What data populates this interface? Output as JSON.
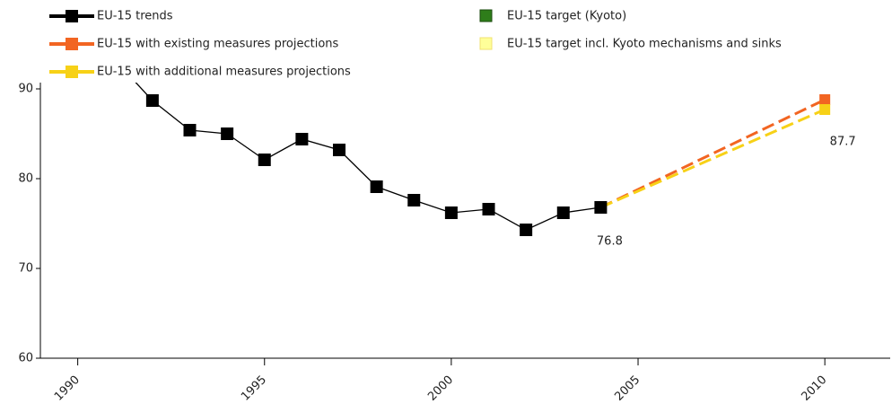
{
  "chart_data": {
    "type": "line",
    "xlim": [
      1989,
      2011.75
    ],
    "xticks": [
      1990,
      1995,
      2000,
      2005,
      2010
    ],
    "ylim": [
      60,
      90.7
    ],
    "yticks": [
      60,
      70,
      80,
      90
    ],
    "grid": false,
    "series": [
      {
        "name": "EU-15  trends",
        "color": "#000000",
        "dash": false,
        "x": [
          1991,
          1992,
          1993,
          1994,
          1995,
          1996,
          1997,
          1998,
          1999,
          2000,
          2001,
          2002,
          2003,
          2004
        ],
        "values": [
          93.2,
          88.7,
          85.4,
          85.0,
          82.1,
          84.4,
          83.2,
          79.1,
          77.6,
          76.2,
          76.6,
          74.3,
          76.2,
          76.8
        ],
        "value_labels": [
          null,
          null,
          null,
          null,
          null,
          null,
          null,
          null,
          null,
          null,
          null,
          null,
          null,
          "76.8"
        ]
      },
      {
        "name": "EU-15  with existing measures projections",
        "color": "#f26522",
        "dash": true,
        "x": [
          2004,
          2010
        ],
        "values": [
          76.8,
          88.8
        ]
      },
      {
        "name": "EU-15  with additional measures projections",
        "color": "#f7d117",
        "dash": true,
        "x": [
          2004,
          2010
        ],
        "values": [
          76.8,
          87.7
        ],
        "value_labels": [
          null,
          "87.7"
        ]
      },
      {
        "name": "EU-15 target (Kyoto)",
        "color": "#2e7d1a",
        "x": [],
        "values": []
      },
      {
        "name": "EU-15 target incl. Kyoto mechanisms and sinks",
        "color": "#ffff99",
        "x": [],
        "values": []
      }
    ]
  }
}
